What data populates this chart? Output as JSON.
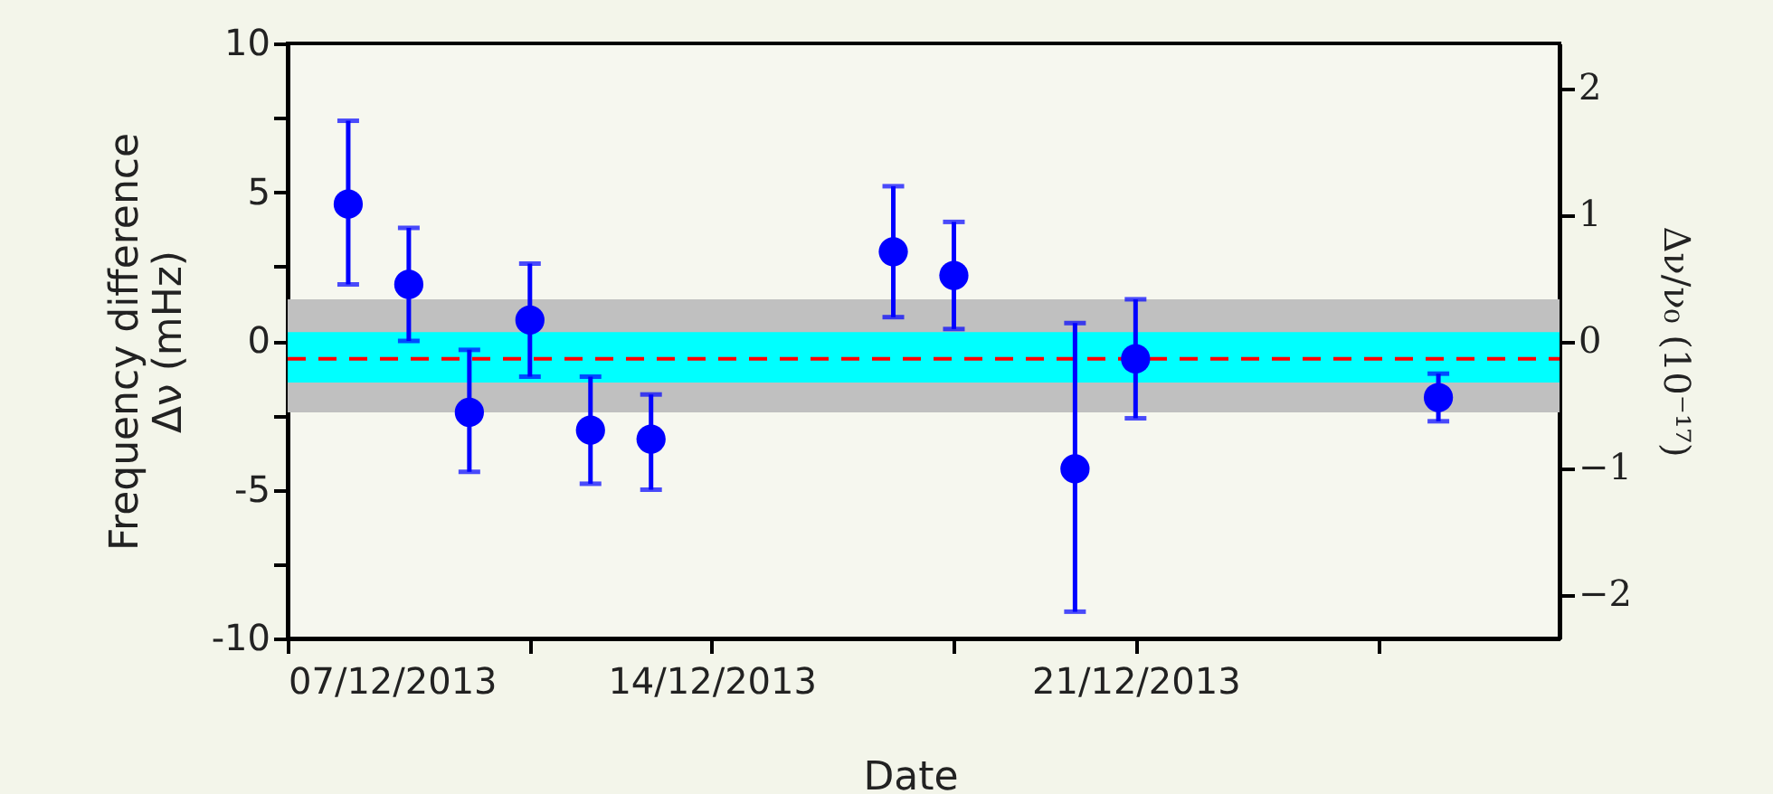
{
  "chart_data": {
    "type": "scatter",
    "xlabel": "Date",
    "ylabel": "Frequency difference\nΔν (mHz)",
    "y2label": "Δν/ν₀ (10⁻¹⁷)",
    "x": [
      "2013-12-08",
      "2013-12-09",
      "2013-12-10",
      "2013-12-11",
      "2013-12-12",
      "2013-12-13",
      "2013-12-17",
      "2013-12-18",
      "2013-12-20",
      "2013-12-21",
      "2013-12-26"
    ],
    "series": [
      {
        "color": "#0000ff",
        "values": [
          4.6,
          1.9,
          -2.4,
          0.7,
          -3.0,
          -3.3,
          3.0,
          2.2,
          -4.3,
          -0.6,
          -1.9
        ],
        "errors": [
          [
            1.9,
            7.4
          ],
          [
            0.0,
            3.8
          ],
          [
            -4.4,
            -0.3
          ],
          [
            -1.2,
            2.6
          ],
          [
            -4.8,
            -1.2
          ],
          [
            -5.0,
            -1.8
          ],
          [
            0.8,
            5.2
          ],
          [
            0.4,
            4.0
          ],
          [
            -9.1,
            0.6
          ],
          [
            -2.6,
            1.4
          ],
          [
            -2.7,
            -1.1
          ]
        ]
      }
    ],
    "marker": "circle",
    "xlim": [
      "2013-12-07",
      "2013-12-28"
    ],
    "xticks": [
      {
        "value": "2013-12-07",
        "label": "07/12/2013"
      },
      {
        "value": "2013-12-11",
        "label": null
      },
      {
        "value": "2013-12-14",
        "label": "14/12/2013"
      },
      {
        "value": "2013-12-18",
        "label": null
      },
      {
        "value": "2013-12-21",
        "label": "21/12/2013"
      },
      {
        "value": "2013-12-25",
        "label": null
      }
    ],
    "ylim": [
      -10,
      10
    ],
    "yticks": [
      -10,
      {
        "value": -7.5,
        "label": null
      },
      -5,
      {
        "value": -2.5,
        "label": null
      },
      0,
      {
        "value": 2.5,
        "label": null
      },
      5,
      {
        "value": 7.5,
        "label": null
      },
      10
    ],
    "y2lim": [
      -2.35,
      2.35
    ],
    "y2ticks": [
      {
        "value": -2,
        "label": "−2"
      },
      {
        "value": -1,
        "label": "−1"
      },
      0,
      1,
      2
    ],
    "bands": [
      {
        "axis": "y",
        "from": -2.4,
        "to": 1.4,
        "color": "#c0c0c0"
      },
      {
        "axis": "y",
        "from": -1.4,
        "to": 0.3,
        "color": "#00ffff"
      }
    ],
    "ref_lines": [
      {
        "axis": "y",
        "value": -0.6,
        "color": "#ff0000",
        "line_style": "dashed"
      }
    ],
    "grid": false,
    "legend": false
  }
}
